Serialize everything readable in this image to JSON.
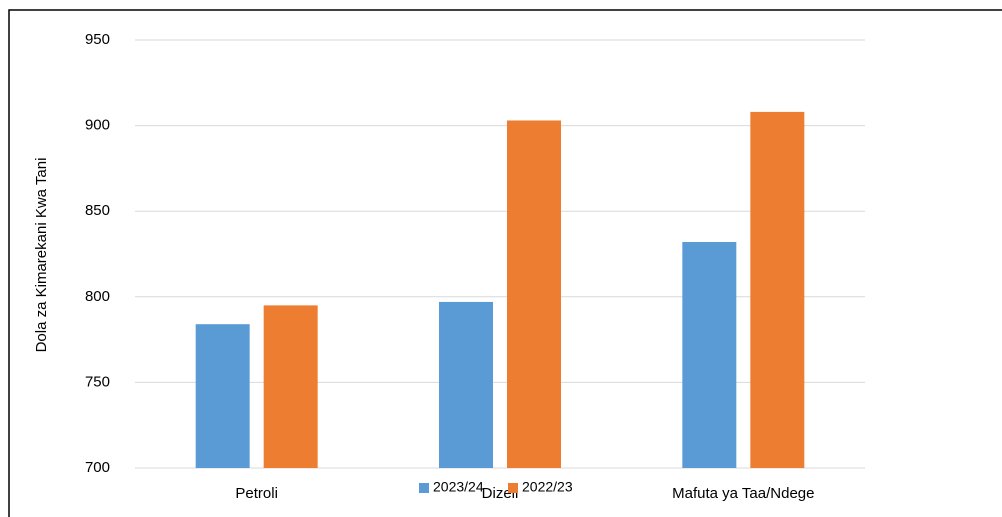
{
  "chart_data": {
    "type": "bar",
    "ylabel": "Dola za Kimarekani Kwa Tani",
    "categories": [
      "Petroli",
      "Dizeli",
      "Mafuta ya Taa/Ndege"
    ],
    "series": [
      {
        "name": "2023/24",
        "color": "#5b9bd5",
        "values": [
          784,
          797,
          832
        ]
      },
      {
        "name": "2022/23",
        "color": "#ed7d31",
        "values": [
          795,
          903,
          908
        ]
      }
    ],
    "ylim": [
      700,
      950
    ],
    "yticks": [
      700,
      750,
      800,
      850,
      900,
      950
    ],
    "grid": true,
    "legend": "bottom"
  }
}
